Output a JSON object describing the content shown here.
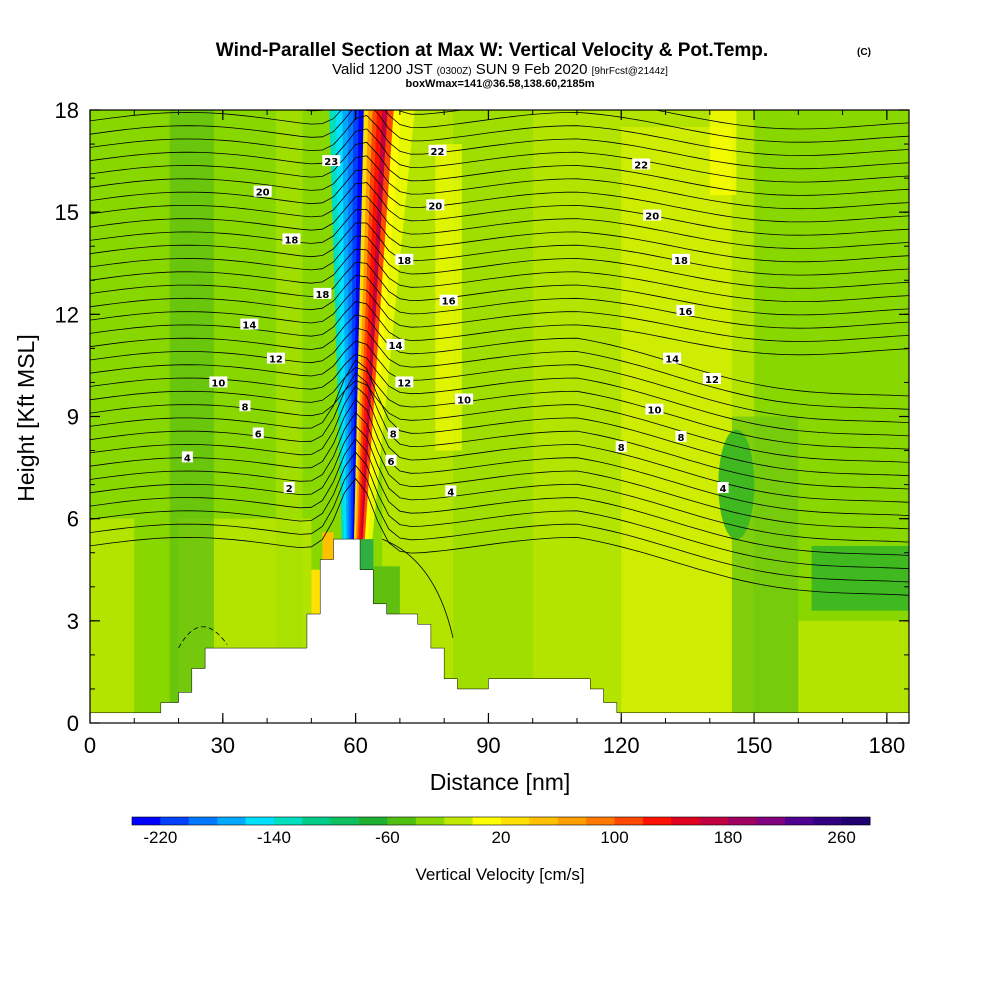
{
  "chart_data": {
    "type": "heatmap",
    "title": "Wind-Parallel Section at Max W: Vertical Velocity & Pot.Temp.",
    "title_mark": "(C)",
    "subtitle": {
      "valid": "Valid 1200 JST",
      "utc": "(0300Z)",
      "date": "SUN 9 Feb 2020",
      "fcst": "[9hrFcst@2144z]"
    },
    "info": "boxWmax=141@36.58,138.60,2185m",
    "xlabel": "Distance [nm]",
    "ylabel": "Height [Kft MSL]",
    "xlim": [
      0,
      185
    ],
    "ylim": [
      0,
      18
    ],
    "xticks": [
      "0",
      "30",
      "60",
      "90",
      "120",
      "150",
      "180"
    ],
    "yticks": [
      "0",
      "3",
      "6",
      "9",
      "12",
      "15",
      "18"
    ],
    "colorbar": {
      "label": "Vertical Velocity [cm/s]",
      "ticks": [
        "-220",
        "-140",
        "-60",
        "20",
        "100",
        "180",
        "260"
      ],
      "min": -240,
      "max": 280,
      "colors": [
        "#0000ff",
        "#0040ff",
        "#0078ff",
        "#00a8ff",
        "#00e0ff",
        "#00e0c0",
        "#00cc88",
        "#10c060",
        "#20b030",
        "#50c010",
        "#88d800",
        "#c0e800",
        "#ffff00",
        "#ffe000",
        "#ffc000",
        "#ffa000",
        "#ff7800",
        "#ff4800",
        "#ff1000",
        "#e00020",
        "#c00040",
        "#a00060",
        "#800080",
        "#500090",
        "#300080",
        "#200070"
      ]
    },
    "contour_labels": [
      {
        "text": "23",
        "x": 54.5,
        "y": 16.5
      },
      {
        "text": "22",
        "x": 78.5,
        "y": 16.8
      },
      {
        "text": "22",
        "x": 124.5,
        "y": 16.4
      },
      {
        "text": "20",
        "x": 39.0,
        "y": 15.6
      },
      {
        "text": "20",
        "x": 78.0,
        "y": 15.2
      },
      {
        "text": "20",
        "x": 127.0,
        "y": 14.9
      },
      {
        "text": "18",
        "x": 45.5,
        "y": 14.2
      },
      {
        "text": "18",
        "x": 71.0,
        "y": 13.6
      },
      {
        "text": "18",
        "x": 133.5,
        "y": 13.6
      },
      {
        "text": "18",
        "x": 52.5,
        "y": 12.6
      },
      {
        "text": "16",
        "x": 81.0,
        "y": 12.4
      },
      {
        "text": "16",
        "x": 134.5,
        "y": 12.1
      },
      {
        "text": "14",
        "x": 36.0,
        "y": 11.7
      },
      {
        "text": "14",
        "x": 69.0,
        "y": 11.1
      },
      {
        "text": "14",
        "x": 131.5,
        "y": 10.7
      },
      {
        "text": "12",
        "x": 42.0,
        "y": 10.7
      },
      {
        "text": "12",
        "x": 71.0,
        "y": 10.0
      },
      {
        "text": "12",
        "x": 140.5,
        "y": 10.1
      },
      {
        "text": "10",
        "x": 29.0,
        "y": 10.0
      },
      {
        "text": "10",
        "x": 84.5,
        "y": 9.5
      },
      {
        "text": "10",
        "x": 127.5,
        "y": 9.2
      },
      {
        "text": "8",
        "x": 35.0,
        "y": 9.3
      },
      {
        "text": "8",
        "x": 68.5,
        "y": 8.5
      },
      {
        "text": "8",
        "x": 133.5,
        "y": 8.4
      },
      {
        "text": "8",
        "x": 120.0,
        "y": 8.1
      },
      {
        "text": "6",
        "x": 38.0,
        "y": 8.5
      },
      {
        "text": "6",
        "x": 68.0,
        "y": 7.7
      },
      {
        "text": "4",
        "x": 22.0,
        "y": 7.8
      },
      {
        "text": "4",
        "x": 81.5,
        "y": 6.8
      },
      {
        "text": "4",
        "x": 143.0,
        "y": 6.9
      },
      {
        "text": "2",
        "x": 45.0,
        "y": 6.9
      }
    ],
    "terrain_kft": [
      [
        0,
        0.3
      ],
      [
        16,
        0.3
      ],
      [
        16,
        0.6
      ],
      [
        20,
        0.6
      ],
      [
        20,
        0.9
      ],
      [
        23,
        0.9
      ],
      [
        23,
        1.6
      ],
      [
        26,
        1.6
      ],
      [
        26,
        2.2
      ],
      [
        49,
        2.2
      ],
      [
        49,
        3.2
      ],
      [
        52,
        3.2
      ],
      [
        52,
        4.8
      ],
      [
        55,
        4.8
      ],
      [
        55,
        5.4
      ],
      [
        61,
        5.4
      ],
      [
        61,
        4.5
      ],
      [
        64,
        4.5
      ],
      [
        64,
        3.5
      ],
      [
        67,
        3.5
      ],
      [
        67,
        3.2
      ],
      [
        74,
        3.2
      ],
      [
        74,
        2.9
      ],
      [
        77,
        2.9
      ],
      [
        77,
        2.2
      ],
      [
        80,
        2.2
      ],
      [
        80,
        1.3
      ],
      [
        83,
        1.3
      ],
      [
        83,
        1.0
      ],
      [
        90,
        1.0
      ],
      [
        90,
        1.3
      ],
      [
        113,
        1.3
      ],
      [
        113,
        1.0
      ],
      [
        116,
        1.0
      ],
      [
        116,
        0.6
      ],
      [
        119,
        0.6
      ],
      [
        119,
        0.3
      ],
      [
        185,
        0.3
      ]
    ]
  }
}
